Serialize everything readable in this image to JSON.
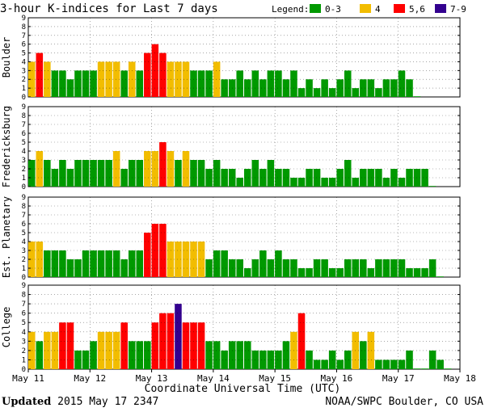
{
  "chart_data": {
    "type": "bar",
    "title": "3-hour K-indices for Last 7 days",
    "legend": {
      "title": "Legend:",
      "position": "top-right",
      "items": [
        {
          "label": "0-3",
          "color": "#009900"
        },
        {
          "label": "4",
          "color": "#f2bd00"
        },
        {
          "label": "5,6",
          "color": "#ff0000"
        },
        {
          "label": "7-9",
          "color": "#33008f"
        }
      ]
    },
    "xlabel": "Coordinate Universal Time (UTC)",
    "x_ticks": [
      "May 11",
      "May 12",
      "May 13",
      "May 14",
      "May 15",
      "May 16",
      "May 17",
      "May 18"
    ],
    "y_ticks": [
      "0",
      "1",
      "2",
      "3",
      "4",
      "5",
      "6",
      "7",
      "8",
      "9"
    ],
    "ylim": [
      0,
      9
    ],
    "intervals_per_day": 8,
    "series": [
      {
        "name": "Boulder",
        "values": [
          4,
          5,
          4,
          3,
          3,
          2,
          3,
          3,
          3,
          4,
          4,
          4,
          3,
          4,
          3,
          5,
          6,
          5,
          4,
          4,
          4,
          3,
          3,
          3,
          4,
          2,
          2,
          3,
          2,
          3,
          2,
          3,
          3,
          2,
          3,
          1,
          2,
          1,
          2,
          1,
          2,
          3,
          1,
          2,
          2,
          1,
          2,
          2,
          3,
          2,
          0
        ]
      },
      {
        "name": "Fredericksburg",
        "values": [
          3,
          4,
          3,
          2,
          3,
          2,
          3,
          3,
          3,
          3,
          3,
          4,
          2,
          3,
          3,
          4,
          4,
          5,
          4,
          3,
          4,
          3,
          3,
          2,
          3,
          2,
          2,
          1,
          2,
          3,
          2,
          3,
          2,
          2,
          1,
          1,
          2,
          2,
          1,
          1,
          2,
          3,
          1,
          2,
          2,
          2,
          1,
          2,
          1,
          2,
          2,
          2,
          0
        ]
      },
      {
        "name": "Est. Planetary",
        "values": [
          4,
          4,
          3,
          3,
          3,
          2,
          2,
          3,
          3,
          3,
          3,
          3,
          2,
          3,
          3,
          5,
          6,
          6,
          4,
          4,
          4,
          4,
          4,
          2,
          3,
          3,
          2,
          2,
          1,
          2,
          3,
          2,
          3,
          2,
          2,
          1,
          1,
          2,
          2,
          1,
          1,
          2,
          2,
          2,
          1,
          2,
          2,
          2,
          2,
          1,
          1,
          1,
          2,
          0
        ]
      },
      {
        "name": "College",
        "values": [
          4,
          3,
          4,
          4,
          5,
          5,
          2,
          2,
          3,
          4,
          4,
          4,
          5,
          3,
          3,
          3,
          5,
          6,
          6,
          7,
          5,
          5,
          5,
          3,
          3,
          2,
          3,
          3,
          3,
          2,
          2,
          2,
          2,
          3,
          4,
          6,
          2,
          1,
          1,
          2,
          1,
          2,
          4,
          3,
          4,
          1,
          1,
          1,
          1,
          2,
          0,
          0,
          2,
          1,
          0
        ]
      }
    ]
  },
  "footer": {
    "updated_label": "Updated",
    "updated_value": "2015 May 17 2347",
    "source": "NOAA/SWPC Boulder, CO USA"
  }
}
